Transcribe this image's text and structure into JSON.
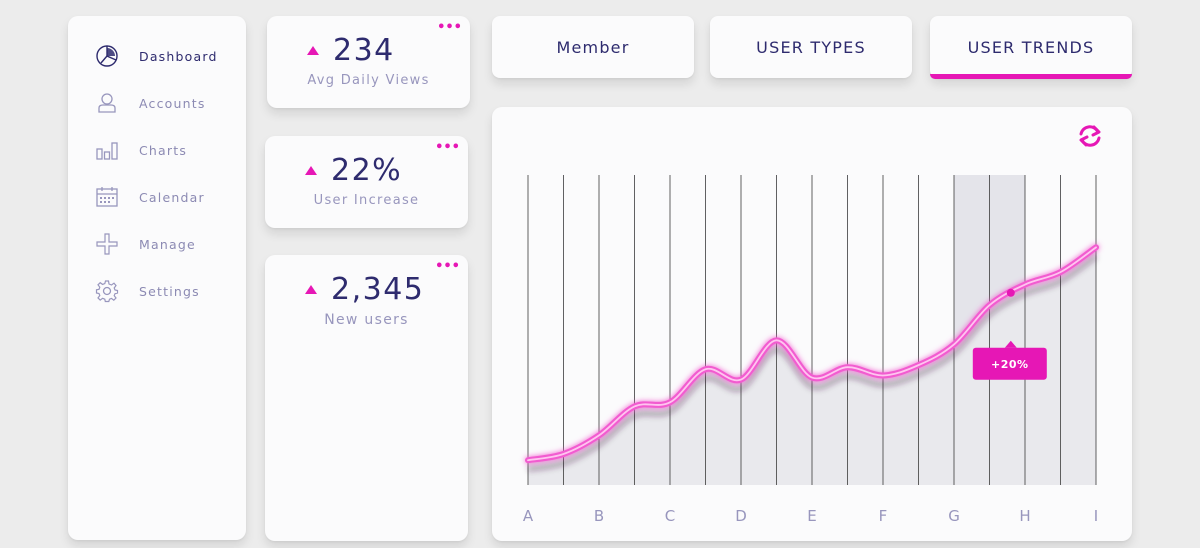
{
  "sidebar": {
    "items": [
      {
        "label": "Dashboard",
        "icon": "pie-chart-icon",
        "active": true
      },
      {
        "label": "Accounts",
        "icon": "user-icon",
        "active": false
      },
      {
        "label": "Charts",
        "icon": "bar-chart-icon",
        "active": false
      },
      {
        "label": "Calendar",
        "icon": "calendar-icon",
        "active": false
      },
      {
        "label": "Manage",
        "icon": "plus-icon",
        "active": false
      },
      {
        "label": "Settings",
        "icon": "gear-icon",
        "active": false
      }
    ]
  },
  "stats": [
    {
      "value": "234",
      "label": "Avg Daily Views",
      "trend": "up"
    },
    {
      "value": "22%",
      "label": "User Increase",
      "trend": "up"
    },
    {
      "value": "2,345",
      "label": "New users",
      "trend": "up"
    }
  ],
  "more_icon": "•••",
  "tabs": [
    {
      "label": "Member",
      "active": false
    },
    {
      "label": "USER TYPES",
      "active": false
    },
    {
      "label": "USER TRENDS",
      "active": true
    }
  ],
  "colors": {
    "accent": "#e617b5",
    "primary_text": "#2e2b6e",
    "secondary_text": "#9896bd",
    "background": "#ececec",
    "card": "#fbfbfc"
  },
  "chart_data": {
    "type": "line",
    "categories": [
      "A",
      "B",
      "C",
      "D",
      "E",
      "F",
      "G",
      "H",
      "I"
    ],
    "x": [
      0,
      0.5,
      1,
      1.5,
      2,
      2.5,
      3,
      3.5,
      4,
      4.5,
      5,
      5.5,
      6,
      6.5,
      7,
      7.5,
      8
    ],
    "values": [
      12,
      15,
      24,
      38,
      40,
      56,
      51,
      70,
      52,
      57,
      53,
      58,
      68,
      87,
      97,
      103,
      115
    ],
    "ylim": [
      0,
      150
    ],
    "highlight_range": [
      6,
      7
    ],
    "annotation": {
      "label": "+20%",
      "x": 6.8
    },
    "refresh_icon": "refresh-icon",
    "grid": "vertical"
  }
}
